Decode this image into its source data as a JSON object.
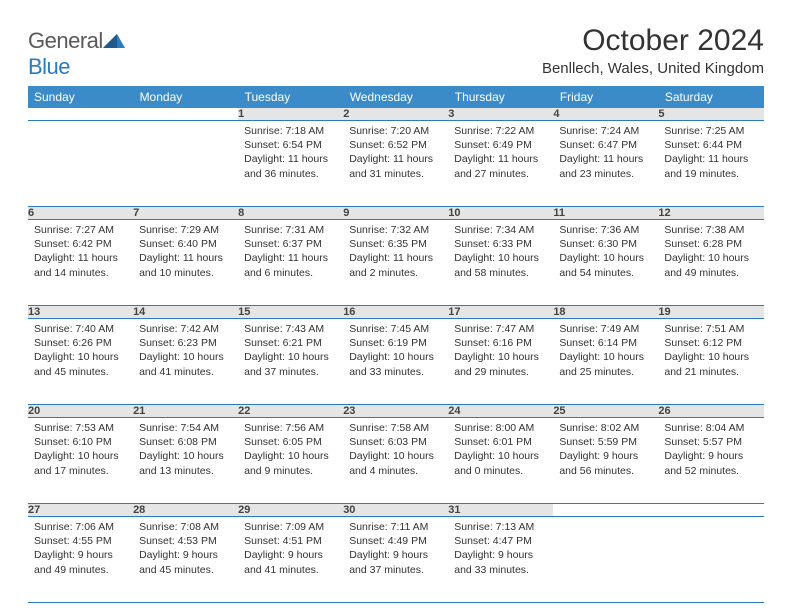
{
  "brand": {
    "name_a": "General",
    "name_b": "Blue"
  },
  "title": "October 2024",
  "location": "Benllech, Wales, United Kingdom",
  "colors": {
    "header_bg": "#3b8bc9",
    "header_text": "#ffffff",
    "daynum_bg": "#e5e5e5",
    "border": "#2b7bbf",
    "brand_blue": "#2b7bbf",
    "text": "#333333"
  },
  "weekdays": [
    "Sunday",
    "Monday",
    "Tuesday",
    "Wednesday",
    "Thursday",
    "Friday",
    "Saturday"
  ],
  "weeks": [
    [
      null,
      null,
      {
        "n": "1",
        "sunrise": "7:18 AM",
        "sunset": "6:54 PM",
        "daylight": "11 hours and 36 minutes."
      },
      {
        "n": "2",
        "sunrise": "7:20 AM",
        "sunset": "6:52 PM",
        "daylight": "11 hours and 31 minutes."
      },
      {
        "n": "3",
        "sunrise": "7:22 AM",
        "sunset": "6:49 PM",
        "daylight": "11 hours and 27 minutes."
      },
      {
        "n": "4",
        "sunrise": "7:24 AM",
        "sunset": "6:47 PM",
        "daylight": "11 hours and 23 minutes."
      },
      {
        "n": "5",
        "sunrise": "7:25 AM",
        "sunset": "6:44 PM",
        "daylight": "11 hours and 19 minutes."
      }
    ],
    [
      {
        "n": "6",
        "sunrise": "7:27 AM",
        "sunset": "6:42 PM",
        "daylight": "11 hours and 14 minutes."
      },
      {
        "n": "7",
        "sunrise": "7:29 AM",
        "sunset": "6:40 PM",
        "daylight": "11 hours and 10 minutes."
      },
      {
        "n": "8",
        "sunrise": "7:31 AM",
        "sunset": "6:37 PM",
        "daylight": "11 hours and 6 minutes."
      },
      {
        "n": "9",
        "sunrise": "7:32 AM",
        "sunset": "6:35 PM",
        "daylight": "11 hours and 2 minutes."
      },
      {
        "n": "10",
        "sunrise": "7:34 AM",
        "sunset": "6:33 PM",
        "daylight": "10 hours and 58 minutes."
      },
      {
        "n": "11",
        "sunrise": "7:36 AM",
        "sunset": "6:30 PM",
        "daylight": "10 hours and 54 minutes."
      },
      {
        "n": "12",
        "sunrise": "7:38 AM",
        "sunset": "6:28 PM",
        "daylight": "10 hours and 49 minutes."
      }
    ],
    [
      {
        "n": "13",
        "sunrise": "7:40 AM",
        "sunset": "6:26 PM",
        "daylight": "10 hours and 45 minutes."
      },
      {
        "n": "14",
        "sunrise": "7:42 AM",
        "sunset": "6:23 PM",
        "daylight": "10 hours and 41 minutes."
      },
      {
        "n": "15",
        "sunrise": "7:43 AM",
        "sunset": "6:21 PM",
        "daylight": "10 hours and 37 minutes."
      },
      {
        "n": "16",
        "sunrise": "7:45 AM",
        "sunset": "6:19 PM",
        "daylight": "10 hours and 33 minutes."
      },
      {
        "n": "17",
        "sunrise": "7:47 AM",
        "sunset": "6:16 PM",
        "daylight": "10 hours and 29 minutes."
      },
      {
        "n": "18",
        "sunrise": "7:49 AM",
        "sunset": "6:14 PM",
        "daylight": "10 hours and 25 minutes."
      },
      {
        "n": "19",
        "sunrise": "7:51 AM",
        "sunset": "6:12 PM",
        "daylight": "10 hours and 21 minutes."
      }
    ],
    [
      {
        "n": "20",
        "sunrise": "7:53 AM",
        "sunset": "6:10 PM",
        "daylight": "10 hours and 17 minutes."
      },
      {
        "n": "21",
        "sunrise": "7:54 AM",
        "sunset": "6:08 PM",
        "daylight": "10 hours and 13 minutes."
      },
      {
        "n": "22",
        "sunrise": "7:56 AM",
        "sunset": "6:05 PM",
        "daylight": "10 hours and 9 minutes."
      },
      {
        "n": "23",
        "sunrise": "7:58 AM",
        "sunset": "6:03 PM",
        "daylight": "10 hours and 4 minutes."
      },
      {
        "n": "24",
        "sunrise": "8:00 AM",
        "sunset": "6:01 PM",
        "daylight": "10 hours and 0 minutes."
      },
      {
        "n": "25",
        "sunrise": "8:02 AM",
        "sunset": "5:59 PM",
        "daylight": "9 hours and 56 minutes."
      },
      {
        "n": "26",
        "sunrise": "8:04 AM",
        "sunset": "5:57 PM",
        "daylight": "9 hours and 52 minutes."
      }
    ],
    [
      {
        "n": "27",
        "sunrise": "7:06 AM",
        "sunset": "4:55 PM",
        "daylight": "9 hours and 49 minutes."
      },
      {
        "n": "28",
        "sunrise": "7:08 AM",
        "sunset": "4:53 PM",
        "daylight": "9 hours and 45 minutes."
      },
      {
        "n": "29",
        "sunrise": "7:09 AM",
        "sunset": "4:51 PM",
        "daylight": "9 hours and 41 minutes."
      },
      {
        "n": "30",
        "sunrise": "7:11 AM",
        "sunset": "4:49 PM",
        "daylight": "9 hours and 37 minutes."
      },
      {
        "n": "31",
        "sunrise": "7:13 AM",
        "sunset": "4:47 PM",
        "daylight": "9 hours and 33 minutes."
      },
      null,
      null
    ]
  ],
  "labels": {
    "sunrise": "Sunrise:",
    "sunset": "Sunset:",
    "daylight": "Daylight:"
  }
}
